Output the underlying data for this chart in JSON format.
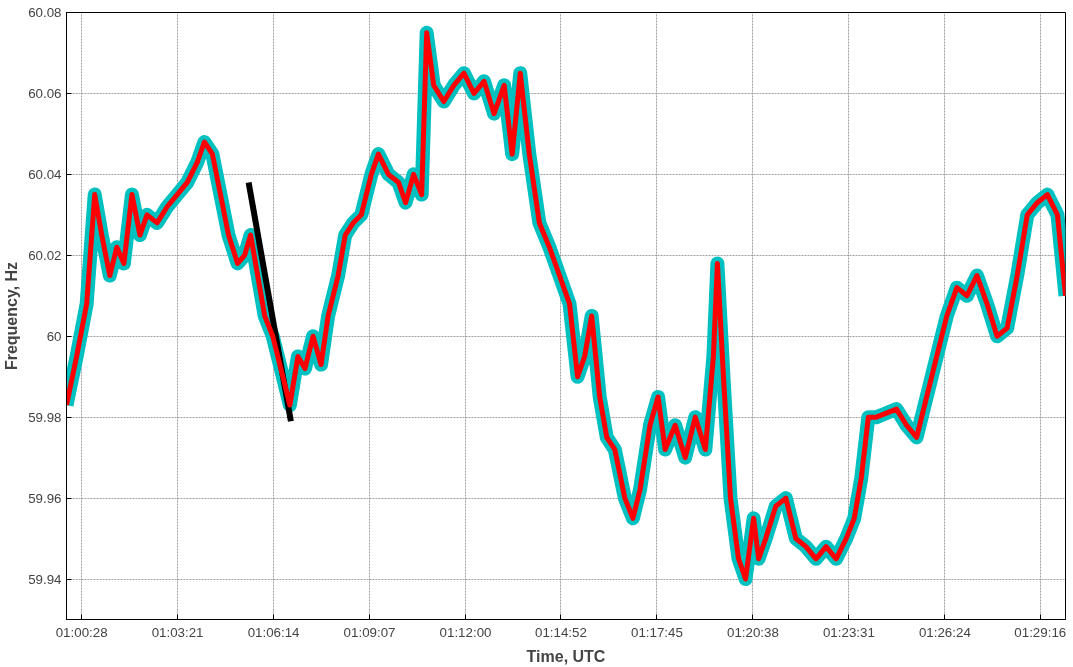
{
  "chart_data": {
    "type": "line",
    "xlabel": "Time, UTC",
    "ylabel": "Frequency, Hz",
    "grid": true,
    "marker": "none",
    "line_style": "solid",
    "xlim": [
      1.0002,
      1.5004
    ],
    "ylim": [
      59.93,
      60.08
    ],
    "xticks": [
      {
        "value": 1.007778,
        "label": "01:00:28"
      },
      {
        "value": 1.055833,
        "label": "01:03:21"
      },
      {
        "value": 1.103889,
        "label": "01:06:14"
      },
      {
        "value": 1.151944,
        "label": "01:09:07"
      },
      {
        "value": 1.2,
        "label": "01:12:00"
      },
      {
        "value": 1.247778,
        "label": "01:14:52"
      },
      {
        "value": 1.295833,
        "label": "01:17:45"
      },
      {
        "value": 1.343889,
        "label": "01:20:38"
      },
      {
        "value": 1.391944,
        "label": "01:23:31"
      },
      {
        "value": 1.44,
        "label": "01:26:24"
      },
      {
        "value": 1.487778,
        "label": "01:29:16"
      }
    ],
    "yticks": [
      59.94,
      59.96,
      59.98,
      60,
      60.02,
      60.04,
      60.06,
      60.08
    ],
    "series": [
      {
        "color": "#00c0c0",
        "x": [
          1.00022,
          1.00526,
          1.0103,
          1.01433,
          1.01785,
          1.02188,
          1.02541,
          1.02893,
          1.03296,
          1.03699,
          1.04052,
          1.04555,
          1.05059,
          1.05563,
          1.06067,
          1.0657,
          1.06923,
          1.07326,
          1.07729,
          1.08132,
          1.08585,
          1.08938,
          1.0924,
          1.09592,
          1.09945,
          1.10348,
          1.10852,
          1.11204,
          1.11607,
          1.1196,
          1.12363,
          1.12766,
          1.13118,
          1.13622,
          1.13975,
          1.14377,
          1.1478,
          1.15284,
          1.15637,
          1.1614,
          1.16644,
          1.16997,
          1.174,
          1.17803,
          1.18054,
          1.18407,
          1.18911,
          1.19414,
          1.19918,
          1.20421,
          1.20926,
          1.21429,
          1.21933,
          1.22336,
          1.22739,
          1.23192,
          1.23696,
          1.24199,
          1.24703,
          1.25207,
          1.2561,
          1.25963,
          1.26315,
          1.26718,
          1.27071,
          1.27474,
          1.27976,
          1.2838,
          1.28733,
          1.29236,
          1.29639,
          1.29992,
          1.30496,
          1.30999,
          1.31503,
          1.32007,
          1.3241,
          1.32611,
          1.32913,
          1.33266,
          1.33669,
          1.34021,
          1.34424,
          1.34676,
          1.35029,
          1.35533,
          1.36037,
          1.3654,
          1.37044,
          1.37548,
          1.38052,
          1.38555,
          1.39059,
          1.39462,
          1.39815,
          1.40167,
          1.4057,
          1.41074,
          1.41578,
          1.42081,
          1.42585,
          1.43089,
          1.43592,
          1.44096,
          1.446,
          1.45104,
          1.45607,
          1.46111,
          1.46615,
          1.47118,
          1.47622,
          1.48126,
          1.48629,
          1.49133,
          1.49637,
          1.5004
        ],
        "values": [
          59.983,
          59.995,
          60.008,
          60.035,
          60.025,
          60.015,
          60.022,
          60.018,
          60.035,
          60.025,
          60.03,
          60.028,
          60.032,
          60.035,
          60.038,
          60.043,
          60.048,
          60.045,
          60.035,
          60.025,
          60.018,
          60.02,
          60.025,
          60.015,
          60.005,
          60.0,
          59.99,
          59.983,
          59.995,
          59.992,
          60.0,
          59.993,
          60.005,
          60.015,
          60.025,
          60.028,
          60.03,
          60.04,
          60.045,
          60.04,
          60.038,
          60.033,
          60.04,
          60.035,
          60.075,
          60.062,
          60.058,
          60.062,
          60.065,
          60.06,
          60.063,
          60.055,
          60.062,
          60.045,
          60.065,
          60.045,
          60.028,
          60.022,
          60.015,
          60.008,
          59.99,
          59.995,
          60.005,
          59.985,
          59.975,
          59.972,
          59.96,
          59.955,
          59.962,
          59.978,
          59.985,
          59.972,
          59.978,
          59.97,
          59.98,
          59.972,
          59.995,
          60.018,
          59.99,
          59.96,
          59.945,
          59.94,
          59.955,
          59.945,
          59.95,
          59.958,
          59.96,
          59.95,
          59.948,
          59.945,
          59.948,
          59.945,
          59.95,
          59.955,
          59.965,
          59.98,
          59.98,
          59.981,
          59.982,
          59.978,
          59.975,
          59.985,
          59.995,
          60.005,
          60.012,
          60.01,
          60.015,
          60.008,
          60.0,
          60.002,
          60.015,
          60.03,
          60.033,
          60.035,
          60.03,
          60.01
        ]
      },
      {
        "type": "line",
        "color": "#000000",
        "x": [
          1.09139,
          1.11255
        ],
        "values": [
          60.038,
          59.979
        ]
      },
      {
        "color": "#ff0000",
        "x": [
          1.00022,
          1.00526,
          1.0103,
          1.01433,
          1.01785,
          1.02188,
          1.02541,
          1.02893,
          1.03296,
          1.03699,
          1.04052,
          1.04555,
          1.05059,
          1.05563,
          1.06067,
          1.0657,
          1.06923,
          1.07326,
          1.07729,
          1.08132,
          1.08585,
          1.08938,
          1.0924,
          1.09592,
          1.09945,
          1.10348,
          1.10852,
          1.11204,
          1.11607,
          1.1196,
          1.12363,
          1.12766,
          1.13118,
          1.13622,
          1.13975,
          1.14377,
          1.1478,
          1.15284,
          1.15637,
          1.1614,
          1.16644,
          1.16997,
          1.174,
          1.17803,
          1.18054,
          1.18407,
          1.18911,
          1.19414,
          1.19918,
          1.20421,
          1.20926,
          1.21429,
          1.21933,
          1.22336,
          1.22739,
          1.23192,
          1.23696,
          1.24199,
          1.24703,
          1.25207,
          1.2561,
          1.25963,
          1.26315,
          1.26718,
          1.27071,
          1.27474,
          1.27976,
          1.2838,
          1.28733,
          1.29236,
          1.29639,
          1.29992,
          1.30496,
          1.30999,
          1.31503,
          1.32007,
          1.3241,
          1.32611,
          1.32913,
          1.33266,
          1.33669,
          1.34021,
          1.34424,
          1.34676,
          1.35029,
          1.35533,
          1.36037,
          1.3654,
          1.37044,
          1.37548,
          1.38052,
          1.38555,
          1.39059,
          1.39462,
          1.39815,
          1.40167,
          1.4057,
          1.41074,
          1.41578,
          1.42081,
          1.42585,
          1.43089,
          1.43592,
          1.44096,
          1.446,
          1.45104,
          1.45607,
          1.46111,
          1.46615,
          1.47118,
          1.47622,
          1.48126,
          1.48629,
          1.49133,
          1.49637,
          1.5004
        ],
        "values": [
          59.983,
          59.995,
          60.008,
          60.035,
          60.025,
          60.015,
          60.022,
          60.018,
          60.035,
          60.025,
          60.03,
          60.028,
          60.032,
          60.035,
          60.038,
          60.043,
          60.048,
          60.045,
          60.035,
          60.025,
          60.018,
          60.02,
          60.025,
          60.015,
          60.005,
          60.0,
          59.99,
          59.983,
          59.995,
          59.992,
          60.0,
          59.993,
          60.005,
          60.015,
          60.025,
          60.028,
          60.03,
          60.04,
          60.045,
          60.04,
          60.038,
          60.033,
          60.04,
          60.035,
          60.075,
          60.062,
          60.058,
          60.062,
          60.065,
          60.06,
          60.063,
          60.055,
          60.062,
          60.045,
          60.065,
          60.045,
          60.028,
          60.022,
          60.015,
          60.008,
          59.99,
          59.995,
          60.005,
          59.985,
          59.975,
          59.972,
          59.96,
          59.955,
          59.962,
          59.978,
          59.985,
          59.972,
          59.978,
          59.97,
          59.98,
          59.972,
          59.995,
          60.018,
          59.99,
          59.96,
          59.945,
          59.94,
          59.955,
          59.945,
          59.95,
          59.958,
          59.96,
          59.95,
          59.948,
          59.945,
          59.948,
          59.945,
          59.95,
          59.955,
          59.965,
          59.98,
          59.98,
          59.981,
          59.982,
          59.978,
          59.975,
          59.985,
          59.995,
          60.005,
          60.012,
          60.01,
          60.015,
          60.008,
          60.0,
          60.002,
          60.015,
          60.03,
          60.033,
          60.035,
          60.03,
          60.01
        ]
      }
    ]
  }
}
